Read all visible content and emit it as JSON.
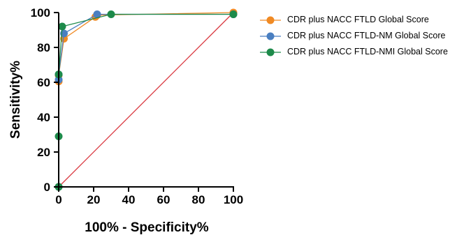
{
  "chart_data": {
    "type": "line",
    "xlabel": "100% - Specificity%",
    "ylabel": "Sensitivity%",
    "xlim": [
      0,
      100
    ],
    "ylim": [
      0,
      100
    ],
    "x_ticks": [
      "0",
      "20",
      "40",
      "60",
      "80",
      "100"
    ],
    "y_ticks": [
      "0",
      "20",
      "40",
      "60",
      "80",
      "100"
    ],
    "grid": false,
    "legend_position": "right",
    "reference_line": {
      "x": [
        0,
        100
      ],
      "y": [
        0,
        100
      ],
      "color": "#d9363e"
    },
    "series": [
      {
        "name": "CDR plus NACC FTLD Global Score",
        "color": "#f08a24",
        "points": [
          [
            0,
            0
          ],
          [
            0,
            60.5
          ],
          [
            0,
            64
          ],
          [
            3,
            85
          ],
          [
            21,
            97.5
          ],
          [
            22,
            98.5
          ],
          [
            100,
            100
          ]
        ]
      },
      {
        "name": "CDR plus NACC FTLD-NM Global Score",
        "color": "#4a7fc1",
        "points": [
          [
            0,
            0
          ],
          [
            0,
            61.5
          ],
          [
            0,
            64.5
          ],
          [
            3,
            88
          ],
          [
            22,
            99
          ],
          [
            100,
            99
          ]
        ]
      },
      {
        "name": "CDR plus NACC FTLD-NMI Global Score",
        "color": "#1d8a4a",
        "points": [
          [
            0,
            0
          ],
          [
            0,
            29
          ],
          [
            0,
            64.5
          ],
          [
            2,
            92
          ],
          [
            30,
            99
          ],
          [
            100,
            99
          ]
        ]
      }
    ]
  }
}
